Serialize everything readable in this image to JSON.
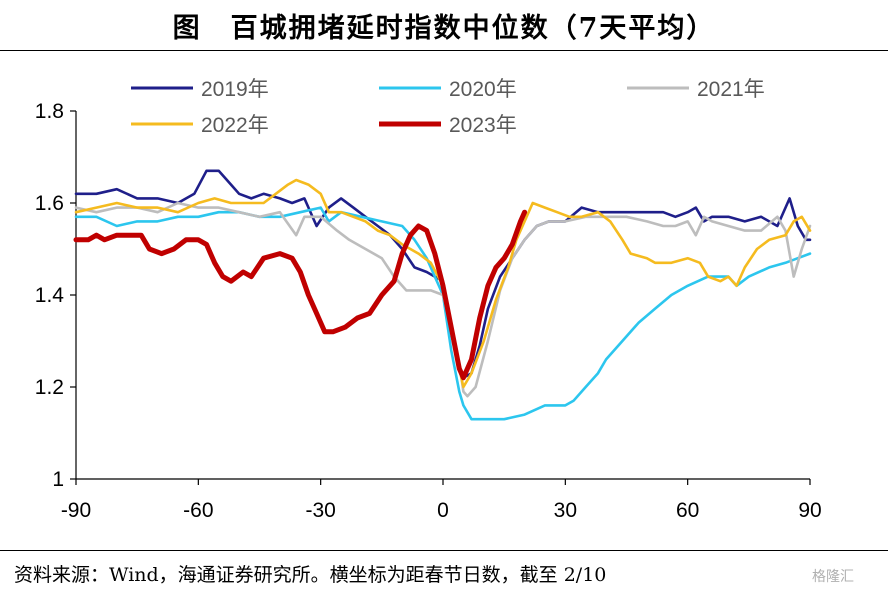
{
  "title": "图　百城拥堵延时指数中位数（7天平均）",
  "source": "资料来源：Wind，海通证券研究所。横坐标为距春节日数，截至 2/10",
  "watermark": "格隆汇",
  "chart_data": {
    "type": "line",
    "xlim": [
      -90,
      90
    ],
    "ylim": [
      1,
      1.8
    ],
    "x_ticks": [
      -90,
      -60,
      -30,
      0,
      30,
      60,
      90
    ],
    "y_ticks": [
      1,
      1.2,
      1.4,
      1.6,
      1.8
    ],
    "y_tick_labels": [
      "1",
      "1.2",
      "1.4",
      "1.6",
      "1.8"
    ],
    "grid": false,
    "legend_position": "top",
    "series": [
      {
        "name": "2019年",
        "color": "#1f1f8a",
        "points": [
          [
            -90,
            1.62
          ],
          [
            -85,
            1.62
          ],
          [
            -80,
            1.63
          ],
          [
            -75,
            1.61
          ],
          [
            -70,
            1.61
          ],
          [
            -65,
            1.6
          ],
          [
            -61,
            1.62
          ],
          [
            -58,
            1.67
          ],
          [
            -55,
            1.67
          ],
          [
            -52,
            1.64
          ],
          [
            -50,
            1.62
          ],
          [
            -47,
            1.61
          ],
          [
            -44,
            1.62
          ],
          [
            -40,
            1.61
          ],
          [
            -37,
            1.6
          ],
          [
            -34,
            1.61
          ],
          [
            -31,
            1.55
          ],
          [
            -28,
            1.59
          ],
          [
            -25,
            1.61
          ],
          [
            -22,
            1.59
          ],
          [
            -19,
            1.57
          ],
          [
            -16,
            1.55
          ],
          [
            -13,
            1.53
          ],
          [
            -10,
            1.5
          ],
          [
            -7,
            1.46
          ],
          [
            -4,
            1.45
          ],
          [
            -2,
            1.44
          ],
          [
            0,
            1.43
          ],
          [
            2,
            1.33
          ],
          [
            4,
            1.24
          ],
          [
            5,
            1.22
          ],
          [
            7,
            1.23
          ],
          [
            9,
            1.29
          ],
          [
            11,
            1.37
          ],
          [
            14,
            1.44
          ],
          [
            17,
            1.48
          ],
          [
            20,
            1.52
          ],
          [
            23,
            1.55
          ],
          [
            26,
            1.56
          ],
          [
            30,
            1.56
          ],
          [
            34,
            1.59
          ],
          [
            38,
            1.58
          ],
          [
            42,
            1.58
          ],
          [
            46,
            1.58
          ],
          [
            50,
            1.58
          ],
          [
            54,
            1.58
          ],
          [
            57,
            1.57
          ],
          [
            60,
            1.58
          ],
          [
            62,
            1.59
          ],
          [
            64,
            1.56
          ],
          [
            66,
            1.57
          ],
          [
            70,
            1.57
          ],
          [
            74,
            1.56
          ],
          [
            78,
            1.57
          ],
          [
            82,
            1.55
          ],
          [
            85,
            1.61
          ],
          [
            87,
            1.55
          ],
          [
            89,
            1.52
          ],
          [
            90,
            1.52
          ]
        ]
      },
      {
        "name": "2020年",
        "color": "#2cc6ee",
        "points": [
          [
            -90,
            1.57
          ],
          [
            -85,
            1.57
          ],
          [
            -80,
            1.55
          ],
          [
            -75,
            1.56
          ],
          [
            -70,
            1.56
          ],
          [
            -65,
            1.57
          ],
          [
            -60,
            1.57
          ],
          [
            -55,
            1.58
          ],
          [
            -50,
            1.58
          ],
          [
            -45,
            1.57
          ],
          [
            -40,
            1.57
          ],
          [
            -35,
            1.58
          ],
          [
            -30,
            1.59
          ],
          [
            -28,
            1.56
          ],
          [
            -25,
            1.58
          ],
          [
            -20,
            1.57
          ],
          [
            -15,
            1.56
          ],
          [
            -10,
            1.55
          ],
          [
            -7,
            1.52
          ],
          [
            -4,
            1.48
          ],
          [
            -2,
            1.44
          ],
          [
            0,
            1.4
          ],
          [
            2,
            1.28
          ],
          [
            4,
            1.19
          ],
          [
            5,
            1.16
          ],
          [
            7,
            1.13
          ],
          [
            10,
            1.13
          ],
          [
            15,
            1.13
          ],
          [
            20,
            1.14
          ],
          [
            25,
            1.16
          ],
          [
            30,
            1.16
          ],
          [
            32,
            1.17
          ],
          [
            35,
            1.2
          ],
          [
            38,
            1.23
          ],
          [
            40,
            1.26
          ],
          [
            44,
            1.3
          ],
          [
            48,
            1.34
          ],
          [
            52,
            1.37
          ],
          [
            56,
            1.4
          ],
          [
            60,
            1.42
          ],
          [
            65,
            1.44
          ],
          [
            70,
            1.44
          ],
          [
            72,
            1.42
          ],
          [
            75,
            1.44
          ],
          [
            80,
            1.46
          ],
          [
            84,
            1.47
          ],
          [
            87,
            1.48
          ],
          [
            90,
            1.49
          ]
        ]
      },
      {
        "name": "2021年",
        "color": "#bdbdbd",
        "points": [
          [
            -90,
            1.59
          ],
          [
            -85,
            1.58
          ],
          [
            -80,
            1.59
          ],
          [
            -75,
            1.59
          ],
          [
            -70,
            1.58
          ],
          [
            -65,
            1.6
          ],
          [
            -60,
            1.59
          ],
          [
            -55,
            1.59
          ],
          [
            -50,
            1.58
          ],
          [
            -45,
            1.57
          ],
          [
            -40,
            1.58
          ],
          [
            -36,
            1.53
          ],
          [
            -34,
            1.57
          ],
          [
            -30,
            1.57
          ],
          [
            -26,
            1.54
          ],
          [
            -23,
            1.52
          ],
          [
            -19,
            1.5
          ],
          [
            -15,
            1.48
          ],
          [
            -12,
            1.44
          ],
          [
            -9,
            1.41
          ],
          [
            -6,
            1.41
          ],
          [
            -3,
            1.41
          ],
          [
            0,
            1.4
          ],
          [
            2,
            1.33
          ],
          [
            4,
            1.25
          ],
          [
            5,
            1.19
          ],
          [
            6,
            1.18
          ],
          [
            8,
            1.2
          ],
          [
            11,
            1.3
          ],
          [
            14,
            1.41
          ],
          [
            17,
            1.48
          ],
          [
            20,
            1.52
          ],
          [
            23,
            1.55
          ],
          [
            26,
            1.56
          ],
          [
            30,
            1.56
          ],
          [
            35,
            1.57
          ],
          [
            40,
            1.57
          ],
          [
            45,
            1.57
          ],
          [
            50,
            1.56
          ],
          [
            54,
            1.55
          ],
          [
            57,
            1.55
          ],
          [
            60,
            1.56
          ],
          [
            62,
            1.53
          ],
          [
            64,
            1.57
          ],
          [
            66,
            1.56
          ],
          [
            70,
            1.55
          ],
          [
            74,
            1.54
          ],
          [
            78,
            1.54
          ],
          [
            82,
            1.57
          ],
          [
            84,
            1.54
          ],
          [
            86,
            1.44
          ],
          [
            88,
            1.5
          ],
          [
            90,
            1.55
          ]
        ]
      },
      {
        "name": "2022年",
        "color": "#f5bb1f",
        "points": [
          [
            -90,
            1.58
          ],
          [
            -85,
            1.59
          ],
          [
            -80,
            1.6
          ],
          [
            -75,
            1.59
          ],
          [
            -70,
            1.59
          ],
          [
            -65,
            1.58
          ],
          [
            -60,
            1.6
          ],
          [
            -56,
            1.61
          ],
          [
            -52,
            1.6
          ],
          [
            -48,
            1.6
          ],
          [
            -44,
            1.6
          ],
          [
            -41,
            1.62
          ],
          [
            -38,
            1.64
          ],
          [
            -36,
            1.65
          ],
          [
            -33,
            1.64
          ],
          [
            -30,
            1.62
          ],
          [
            -28,
            1.58
          ],
          [
            -25,
            1.58
          ],
          [
            -22,
            1.57
          ],
          [
            -19,
            1.56
          ],
          [
            -16,
            1.54
          ],
          [
            -13,
            1.53
          ],
          [
            -10,
            1.51
          ],
          [
            -6,
            1.49
          ],
          [
            -3,
            1.47
          ],
          [
            0,
            1.42
          ],
          [
            2,
            1.33
          ],
          [
            4,
            1.24
          ],
          [
            5,
            1.2
          ],
          [
            7,
            1.23
          ],
          [
            10,
            1.3
          ],
          [
            13,
            1.39
          ],
          [
            16,
            1.46
          ],
          [
            18,
            1.52
          ],
          [
            20,
            1.56
          ],
          [
            22,
            1.6
          ],
          [
            25,
            1.59
          ],
          [
            28,
            1.58
          ],
          [
            31,
            1.57
          ],
          [
            34,
            1.57
          ],
          [
            38,
            1.58
          ],
          [
            41,
            1.56
          ],
          [
            44,
            1.52
          ],
          [
            46,
            1.49
          ],
          [
            50,
            1.48
          ],
          [
            52,
            1.47
          ],
          [
            56,
            1.47
          ],
          [
            60,
            1.48
          ],
          [
            63,
            1.47
          ],
          [
            65,
            1.44
          ],
          [
            68,
            1.43
          ],
          [
            70,
            1.44
          ],
          [
            72,
            1.42
          ],
          [
            74,
            1.46
          ],
          [
            77,
            1.5
          ],
          [
            80,
            1.52
          ],
          [
            84,
            1.53
          ],
          [
            86,
            1.56
          ],
          [
            88,
            1.57
          ],
          [
            90,
            1.54
          ]
        ]
      },
      {
        "name": "2023年",
        "color": "#c00000",
        "points": [
          [
            -90,
            1.52
          ],
          [
            -87,
            1.52
          ],
          [
            -85,
            1.53
          ],
          [
            -83,
            1.52
          ],
          [
            -80,
            1.53
          ],
          [
            -77,
            1.53
          ],
          [
            -74,
            1.53
          ],
          [
            -72,
            1.5
          ],
          [
            -69,
            1.49
          ],
          [
            -66,
            1.5
          ],
          [
            -63,
            1.52
          ],
          [
            -60,
            1.52
          ],
          [
            -58,
            1.51
          ],
          [
            -56,
            1.47
          ],
          [
            -54,
            1.44
          ],
          [
            -52,
            1.43
          ],
          [
            -49,
            1.45
          ],
          [
            -47,
            1.44
          ],
          [
            -44,
            1.48
          ],
          [
            -40,
            1.49
          ],
          [
            -37,
            1.48
          ],
          [
            -35,
            1.45
          ],
          [
            -33,
            1.4
          ],
          [
            -31,
            1.36
          ],
          [
            -29,
            1.32
          ],
          [
            -27,
            1.32
          ],
          [
            -24,
            1.33
          ],
          [
            -21,
            1.35
          ],
          [
            -18,
            1.36
          ],
          [
            -15,
            1.4
          ],
          [
            -12,
            1.43
          ],
          [
            -10,
            1.49
          ],
          [
            -8,
            1.53
          ],
          [
            -6,
            1.55
          ],
          [
            -4,
            1.54
          ],
          [
            -2,
            1.49
          ],
          [
            0,
            1.42
          ],
          [
            2,
            1.33
          ],
          [
            4,
            1.24
          ],
          [
            5,
            1.22
          ],
          [
            7,
            1.26
          ],
          [
            9,
            1.35
          ],
          [
            11,
            1.42
          ],
          [
            13,
            1.46
          ],
          [
            15,
            1.48
          ],
          [
            17,
            1.51
          ],
          [
            19,
            1.56
          ],
          [
            20,
            1.58
          ]
        ]
      }
    ]
  }
}
